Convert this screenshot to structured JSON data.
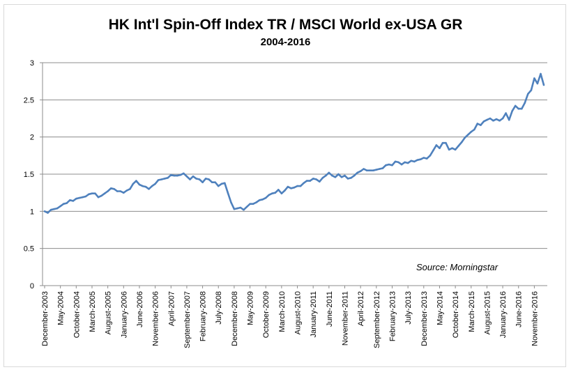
{
  "chart_data": {
    "type": "line",
    "title": "HK Int'l Spin-Off Index TR / MSCI World ex-USA GR",
    "subtitle": "2004-2016",
    "annotation": "Source:  Morningstar",
    "ylim": [
      0,
      3
    ],
    "yticks": [
      0,
      0.5,
      1,
      1.5,
      2,
      2.5,
      3
    ],
    "grid": true,
    "legend": "none",
    "line_color": "#4f81bd",
    "x_tick_labels": [
      "December-2003",
      "May-2004",
      "October-2004",
      "March-2005",
      "August-2005",
      "January-2006",
      "June-2006",
      "November-2006",
      "April-2007",
      "September-2007",
      "February-2008",
      "July-2008",
      "December-2008",
      "May-2009",
      "October-2009",
      "March-2010",
      "August-2010",
      "January-2011",
      "June-2011",
      "November-2011",
      "April-2012",
      "September-2012",
      "February-2013",
      "July-2013",
      "December-2013",
      "May-2014",
      "October-2014",
      "March-2015",
      "August-2015",
      "January-2016",
      "June-2016",
      "November-2016"
    ],
    "series": [
      {
        "values": [
          1.0,
          0.98,
          1.02,
          1.03,
          1.04,
          1.07,
          1.1,
          1.11,
          1.15,
          1.14,
          1.17,
          1.18,
          1.19,
          1.2,
          1.23,
          1.24,
          1.24,
          1.19,
          1.21,
          1.24,
          1.27,
          1.31,
          1.3,
          1.27,
          1.27,
          1.25,
          1.28,
          1.3,
          1.37,
          1.41,
          1.36,
          1.34,
          1.33,
          1.3,
          1.34,
          1.37,
          1.42,
          1.43,
          1.44,
          1.45,
          1.49,
          1.48,
          1.48,
          1.49,
          1.51,
          1.47,
          1.43,
          1.47,
          1.44,
          1.43,
          1.39,
          1.44,
          1.43,
          1.39,
          1.39,
          1.34,
          1.37,
          1.38,
          1.25,
          1.12,
          1.03,
          1.04,
          1.05,
          1.02,
          1.06,
          1.1,
          1.1,
          1.12,
          1.15,
          1.16,
          1.18,
          1.22,
          1.24,
          1.25,
          1.29,
          1.24,
          1.28,
          1.33,
          1.31,
          1.32,
          1.34,
          1.34,
          1.38,
          1.41,
          1.41,
          1.44,
          1.43,
          1.4,
          1.45,
          1.48,
          1.52,
          1.48,
          1.46,
          1.5,
          1.46,
          1.48,
          1.44,
          1.45,
          1.48,
          1.52,
          1.54,
          1.57,
          1.55,
          1.55,
          1.55,
          1.56,
          1.57,
          1.58,
          1.62,
          1.63,
          1.62,
          1.67,
          1.66,
          1.63,
          1.66,
          1.65,
          1.68,
          1.67,
          1.69,
          1.7,
          1.72,
          1.71,
          1.75,
          1.82,
          1.89,
          1.85,
          1.92,
          1.92,
          1.83,
          1.85,
          1.83,
          1.88,
          1.93,
          1.99,
          2.03,
          2.07,
          2.1,
          2.18,
          2.16,
          2.21,
          2.23,
          2.25,
          2.22,
          2.24,
          2.22,
          2.25,
          2.32,
          2.23,
          2.35,
          2.42,
          2.38,
          2.38,
          2.46,
          2.58,
          2.63,
          2.79,
          2.72,
          2.85,
          2.7
        ]
      }
    ]
  }
}
